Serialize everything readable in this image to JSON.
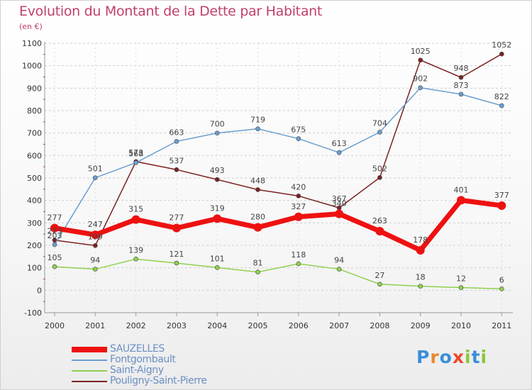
{
  "title": "Evolution du Montant de la Dette par Habitant",
  "subtitle": "(en €)",
  "logo": {
    "letters": [
      "P",
      "r",
      "o",
      "x",
      "i",
      "t",
      "i"
    ],
    "colors": [
      "#3a8fd8",
      "#e98a2c",
      "#3a8fd8",
      "#e84a2c",
      "#8cc43c",
      "#3a8fd8",
      "#8cc43c"
    ]
  },
  "chart_data": {
    "type": "line",
    "categories": [
      "2000",
      "2001",
      "2002",
      "2003",
      "2004",
      "2005",
      "2006",
      "2007",
      "2008",
      "2009",
      "2010",
      "2011"
    ],
    "ylim": [
      -100,
      1100
    ],
    "yticks": [
      "-100",
      "0",
      "100",
      "200",
      "300",
      "400",
      "500",
      "600",
      "700",
      "800",
      "900",
      "1000",
      "1100"
    ],
    "grid": "horizontal-dashed",
    "legend_position": "bottom-left",
    "series": [
      {
        "name": "Saint-Aigny",
        "color": "#8fd14f",
        "width": 1.5,
        "values": [
          105,
          94,
          139,
          121,
          101,
          81,
          118,
          94,
          27,
          18,
          12,
          6
        ],
        "labels": [
          "105",
          "94",
          "139",
          "121",
          "101",
          "81",
          "118",
          "94",
          "27",
          "18",
          "12",
          "6"
        ]
      },
      {
        "name": "Pouligny-Saint-Pierre",
        "color": "#7a2222",
        "width": 1.5,
        "values": [
          223,
          199,
          573,
          537,
          493,
          448,
          420,
          367,
          502,
          1025,
          948,
          1052
        ],
        "labels": [
          "223",
          "199",
          "573",
          "537",
          "493",
          "448",
          "420",
          "367",
          "502",
          "1025",
          "948",
          "1052"
        ]
      },
      {
        "name": "Fontgombault",
        "color": "#6a9fd0",
        "width": 1.5,
        "values": [
          203,
          501,
          568,
          663,
          700,
          719,
          675,
          613,
          704,
          902,
          873,
          822
        ],
        "labels": [
          "203",
          "501",
          "568",
          "663",
          "700",
          "719",
          "675",
          "613",
          "704",
          "902",
          "873",
          "822"
        ]
      },
      {
        "name": "SAUZELLES",
        "color": "#ee1111",
        "width": 7,
        "values": [
          277,
          247,
          315,
          277,
          319,
          280,
          327,
          340,
          263,
          178,
          401,
          377
        ],
        "labels": [
          "277",
          "247",
          "315",
          "277",
          "319",
          "280",
          "327",
          "340",
          "263",
          "178",
          "401",
          "377"
        ]
      }
    ]
  },
  "legend": [
    {
      "name": "SAUZELLES",
      "color": "#ee1111"
    },
    {
      "name": "Fontgombault",
      "color": "#6a9fd0"
    },
    {
      "name": "Saint-Aigny",
      "color": "#8fd14f"
    },
    {
      "name": "Pouligny-Saint-Pierre",
      "color": "#7a2222"
    }
  ]
}
